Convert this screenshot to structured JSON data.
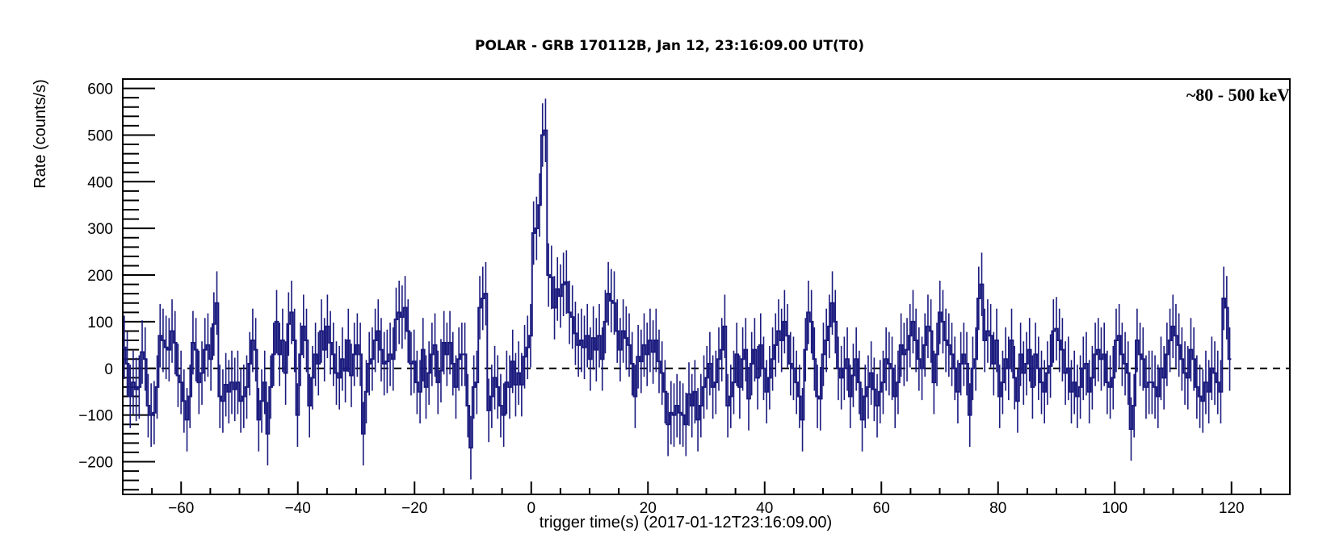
{
  "chart_data": {
    "type": "line",
    "title": "POLAR - GRB 170112B, Jan 12, 23:16:09.00  UT(T0)",
    "xlabel": "trigger time(s) (2017-01-12T23:16:09.00)",
    "ylabel": "Rate (counts/s)",
    "annotation": "~80 - 500 keV",
    "xlim": [
      -70,
      130
    ],
    "ylim": [
      -270,
      620
    ],
    "x_ticks": [
      -60,
      -40,
      -20,
      0,
      20,
      40,
      60,
      80,
      100,
      120
    ],
    "x_tick_labels": [
      "−60",
      "−40",
      "−20",
      "0",
      "20",
      "40",
      "60",
      "80",
      "100",
      "120"
    ],
    "y_ticks": [
      -200,
      -100,
      0,
      100,
      200,
      300,
      400,
      500,
      600
    ],
    "y_tick_labels": [
      "−200",
      "−100",
      "0",
      "100",
      "200",
      "300",
      "400",
      "500",
      "600"
    ],
    "reference_line": {
      "y": 0,
      "style": "dashed"
    },
    "bin_width": 0.512,
    "x_start": -70,
    "error_half": 68,
    "series": [
      {
        "color": "#1a1a7e",
        "values": [
          45,
          10,
          -60,
          -30,
          -45,
          -40,
          35,
          20,
          -80,
          -100,
          -95,
          -40,
          70,
          60,
          45,
          40,
          80,
          55,
          -15,
          -30,
          -70,
          -110,
          -60,
          55,
          40,
          -30,
          -10,
          40,
          50,
          20,
          95,
          140,
          -60,
          -70,
          -35,
          -50,
          -30,
          -45,
          -30,
          -70,
          -60,
          -40,
          10,
          60,
          40,
          -110,
          -70,
          -30,
          -140,
          -40,
          30,
          100,
          30,
          60,
          -10,
          95,
          120,
          60,
          -100,
          30,
          90,
          60,
          -80,
          -20,
          30,
          10,
          80,
          40,
          90,
          55,
          30,
          -10,
          -20,
          20,
          -5,
          60,
          -15,
          30,
          50,
          30,
          -140,
          -50,
          10,
          20,
          60,
          80,
          40,
          10,
          15,
          30,
          20,
          105,
          120,
          110,
          130,
          80,
          10,
          15,
          -30,
          -50,
          40,
          -40,
          -10,
          30,
          50,
          -30,
          -5,
          55,
          30,
          55,
          10,
          -40,
          20,
          30,
          30,
          -80,
          -170,
          -40,
          -30,
          130,
          150,
          160,
          -90,
          -60,
          -20,
          -40,
          -80,
          -100,
          -30,
          -40,
          15,
          -35,
          -10,
          -35,
          25,
          45,
          70,
          290,
          300,
          350,
          500,
          510,
          200,
          195,
          130,
          170,
          155,
          180,
          185,
          120,
          110,
          75,
          50,
          60,
          45,
          70,
          20,
          65,
          40,
          70,
          20,
          100,
          160,
          145,
          140,
          80,
          40,
          80,
          65,
          50,
          10,
          -60,
          25,
          15,
          50,
          30,
          60,
          35,
          60,
          15,
          -10,
          -50,
          -120,
          -95,
          -100,
          -80,
          -95,
          -100,
          -120,
          -55,
          -80,
          -50,
          -110,
          -80,
          -40,
          -20,
          10,
          -40,
          -30,
          20,
          40,
          90,
          -80,
          -60,
          -30,
          30,
          -40,
          20,
          40,
          -65,
          10,
          40,
          -20,
          50,
          0,
          -50,
          -20,
          20,
          50,
          80,
          60,
          100,
          70,
          10,
          0,
          -30,
          -60,
          -110,
          40,
          120,
          100,
          20,
          -60,
          -65,
          30,
          60,
          90,
          140,
          100,
          0,
          -20,
          0,
          20,
          -60,
          -15,
          20,
          -30,
          -110,
          -60,
          -40,
          -10,
          -45,
          -80,
          -50,
          -30,
          20,
          10,
          0,
          -60,
          -30,
          50,
          30,
          40,
          70,
          100,
          60,
          20,
          0,
          50,
          90,
          80,
          -30,
          30,
          120,
          100,
          60,
          50,
          30,
          0,
          -50,
          10,
          30,
          10,
          -100,
          0,
          20,
          150,
          180,
          60,
          80,
          70,
          10,
          60,
          -60,
          -30,
          20,
          0,
          60,
          -20,
          -70,
          30,
          -10,
          10,
          40,
          -40,
          30,
          0,
          -30,
          -50,
          -10,
          5,
          80,
          85,
          60,
          40,
          -10,
          0,
          -50,
          -30,
          -60,
          -40,
          0,
          10,
          -50,
          -20,
          30,
          40,
          20,
          30,
          -30,
          -40,
          -20,
          60,
          70,
          30,
          10,
          -10,
          -130,
          -80,
          60,
          30,
          20,
          -40,
          -30,
          -30,
          -40,
          -60,
          0,
          -20,
          30,
          60,
          90,
          70,
          50,
          20,
          -10,
          -20,
          40,
          20,
          -40,
          -60,
          -70,
          -30,
          -50,
          0,
          -10,
          -30,
          -50,
          150,
          130,
          20
        ]
      }
    ],
    "grid": false,
    "legend": "none"
  }
}
